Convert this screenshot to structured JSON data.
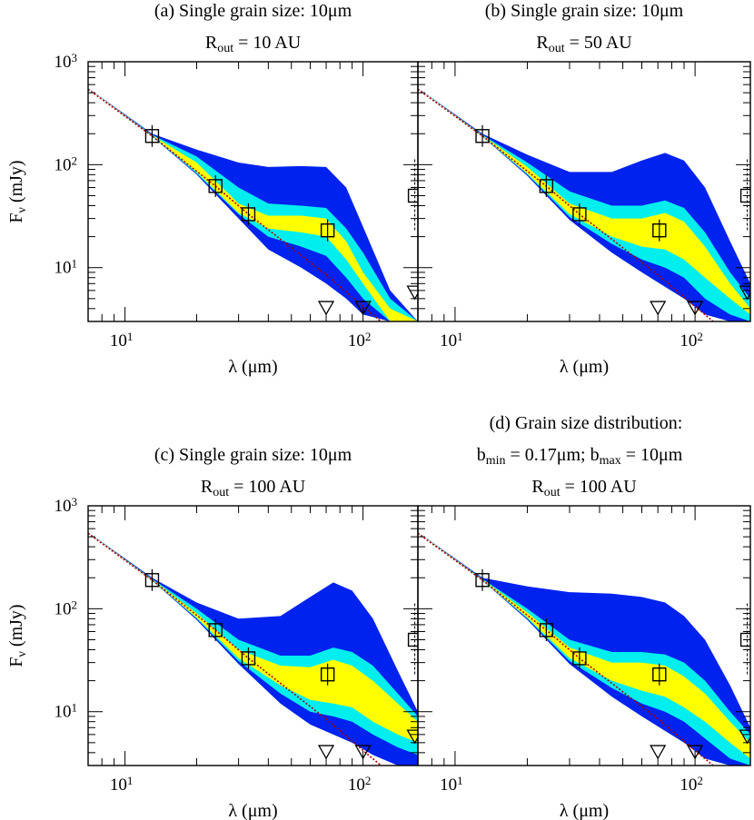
{
  "chart_data": [
    {
      "id": "a",
      "type": "line",
      "title_line1": "(a) Single grain size: 10μm",
      "title_line2": "R",
      "title_sub": "out",
      "title_rest": " = 10 AU",
      "xlabel": "λ (μm)",
      "ylabel": "F",
      "ylabel_sub": "ν",
      "ylabel_rest": " (mJy)",
      "xscale": "log",
      "yscale": "log",
      "xlim": [
        7,
        170
      ],
      "ylim": [
        3,
        1000
      ],
      "x_ticks": [
        "10",
        "10"
      ],
      "x_tick_exps": [
        "1",
        "2"
      ],
      "y_ticks": [
        "10",
        "10",
        "10"
      ],
      "y_tick_exps": [
        "1",
        "2",
        "3"
      ],
      "band_colors": [
        "#0022ee",
        "#00eeee",
        "#ffff00"
      ],
      "bands": {
        "x": [
          7,
          13,
          20,
          30,
          40,
          55,
          70,
          85,
          100,
          130,
          170
        ],
        "blue_upper": [
          555,
          200,
          140,
          105,
          95,
          97,
          95,
          60,
          25,
          6,
          3
        ],
        "cyan_upper": [
          555,
          195,
          120,
          60,
          42,
          40,
          38,
          24,
          14,
          5,
          3
        ],
        "yellow_upper": [
          555,
          193,
          105,
          42,
          32,
          32,
          30,
          18,
          9,
          4,
          3
        ],
        "yellow_lower": [
          555,
          190,
          85,
          34,
          24,
          22,
          20,
          12,
          7,
          3,
          3
        ],
        "cyan_lower": [
          555,
          189,
          82,
          33,
          20,
          16,
          13,
          8,
          5,
          3,
          3
        ],
        "blue_lower": [
          555,
          188,
          80,
          30,
          15,
          10,
          7,
          5,
          3.5,
          3,
          3
        ]
      },
      "photosphere": {
        "x": [
          7,
          13,
          24,
          33,
          70,
          100,
          170
        ],
        "y": [
          540,
          190,
          62,
          33,
          8.5,
          4.2,
          1.5
        ]
      },
      "data_points": [
        {
          "x": 13,
          "y": 190
        },
        {
          "x": 24,
          "y": 62
        },
        {
          "x": 33,
          "y": 33
        },
        {
          "x": 71,
          "y": 23
        }
      ],
      "upper_limits": [
        {
          "x": 70,
          "y": 3.9
        },
        {
          "x": 100,
          "y": 3.9
        },
        {
          "x": 165,
          "y": 5.5
        }
      ],
      "offscale_points": [
        {
          "x": 165,
          "y": 50
        }
      ]
    },
    {
      "id": "b",
      "type": "line",
      "title_line1": "(b) Single grain size: 10μm",
      "title_line2": "R",
      "title_sub": "out",
      "title_rest": " = 50 AU",
      "xlabel": "λ (μm)",
      "ylabel": "",
      "ylabel_sub": "",
      "ylabel_rest": "",
      "xscale": "log",
      "yscale": "log",
      "xlim": [
        7,
        170
      ],
      "ylim": [
        3,
        1000
      ],
      "x_ticks": [
        "10",
        "10"
      ],
      "x_tick_exps": [
        "1",
        "2"
      ],
      "y_ticks": [],
      "y_tick_exps": [],
      "band_colors": [
        "#0022ee",
        "#00eeee",
        "#ffff00"
      ],
      "bands": {
        "x": [
          7,
          13,
          20,
          30,
          45,
          60,
          75,
          90,
          110,
          140,
          170
        ],
        "blue_upper": [
          555,
          200,
          125,
          85,
          85,
          110,
          130,
          110,
          60,
          18,
          7
        ],
        "cyan_upper": [
          555,
          195,
          105,
          55,
          40,
          40,
          45,
          38,
          22,
          9,
          5
        ],
        "yellow_upper": [
          555,
          193,
          95,
          42,
          30,
          30,
          34,
          28,
          16,
          7,
          4
        ],
        "yellow_lower": [
          555,
          190,
          82,
          33,
          20,
          16,
          15,
          12,
          8,
          5,
          3.5
        ],
        "cyan_lower": [
          555,
          189,
          80,
          31,
          17,
          12,
          10,
          8,
          5,
          3.5,
          3
        ],
        "blue_lower": [
          555,
          188,
          78,
          29,
          14,
          9,
          6.5,
          5,
          3.5,
          3,
          3
        ]
      },
      "photosphere": {
        "x": [
          7,
          13,
          24,
          33,
          70,
          100,
          170
        ],
        "y": [
          540,
          190,
          62,
          33,
          8.5,
          4.2,
          1.5
        ]
      },
      "data_points": [
        {
          "x": 13,
          "y": 190
        },
        {
          "x": 24,
          "y": 62
        },
        {
          "x": 33,
          "y": 33
        },
        {
          "x": 71,
          "y": 23
        }
      ],
      "upper_limits": [
        {
          "x": 70,
          "y": 3.9
        },
        {
          "x": 100,
          "y": 3.9
        },
        {
          "x": 165,
          "y": 5.5
        }
      ],
      "offscale_points": [
        {
          "x": 165,
          "y": 50
        }
      ]
    },
    {
      "id": "c",
      "type": "line",
      "title_line1": "(c) Single grain size: 10μm",
      "title_line2": "R",
      "title_sub": "out",
      "title_rest": " = 100 AU",
      "xlabel": "λ (μm)",
      "ylabel": "F",
      "ylabel_sub": "ν",
      "ylabel_rest": " (mJy)",
      "xscale": "log",
      "yscale": "log",
      "xlim": [
        7,
        170
      ],
      "ylim": [
        3,
        1000
      ],
      "x_ticks": [
        "10",
        "10"
      ],
      "x_tick_exps": [
        "1",
        "2"
      ],
      "y_ticks": [
        "10",
        "10",
        "10"
      ],
      "y_tick_exps": [
        "1",
        "2",
        "3"
      ],
      "band_colors": [
        "#0022ee",
        "#00eeee",
        "#ffff00"
      ],
      "bands": {
        "x": [
          7,
          13,
          20,
          30,
          45,
          60,
          75,
          90,
          110,
          140,
          170
        ],
        "blue_upper": [
          555,
          200,
          115,
          80,
          85,
          130,
          180,
          150,
          80,
          25,
          10
        ],
        "cyan_upper": [
          555,
          195,
          100,
          50,
          35,
          35,
          42,
          38,
          28,
          15,
          9
        ],
        "yellow_upper": [
          555,
          193,
          90,
          40,
          28,
          27,
          32,
          28,
          20,
          12,
          8
        ],
        "yellow_lower": [
          555,
          190,
          82,
          33,
          18,
          13,
          12,
          11,
          8,
          6,
          5
        ],
        "cyan_lower": [
          555,
          189,
          80,
          31,
          15,
          10,
          9,
          8,
          6,
          4.5,
          3.8
        ],
        "blue_lower": [
          555,
          188,
          78,
          29,
          12,
          7.5,
          6,
          5,
          3.8,
          3,
          3
        ]
      },
      "photosphere": {
        "x": [
          7,
          13,
          24,
          33,
          70,
          100,
          170
        ],
        "y": [
          540,
          190,
          62,
          33,
          8.5,
          4.2,
          1.5
        ]
      },
      "data_points": [
        {
          "x": 13,
          "y": 190
        },
        {
          "x": 24,
          "y": 62
        },
        {
          "x": 33,
          "y": 33
        },
        {
          "x": 71,
          "y": 23
        }
      ],
      "upper_limits": [
        {
          "x": 70,
          "y": 3.9
        },
        {
          "x": 100,
          "y": 3.9
        },
        {
          "x": 165,
          "y": 5.5
        }
      ],
      "offscale_points": [
        {
          "x": 165,
          "y": 50
        }
      ]
    },
    {
      "id": "d",
      "type": "line",
      "title_line0": "(d) Grain size distribution:",
      "title_line1_parts": [
        "b",
        "min",
        " = 0.17μm; b",
        "max",
        " = 10μm"
      ],
      "title_line2": "R",
      "title_sub": "out",
      "title_rest": " = 100 AU",
      "xlabel": "λ (μm)",
      "ylabel": "",
      "ylabel_sub": "",
      "ylabel_rest": "",
      "xscale": "log",
      "yscale": "log",
      "xlim": [
        7,
        170
      ],
      "ylim": [
        3,
        1000
      ],
      "x_ticks": [
        "10",
        "10"
      ],
      "x_tick_exps": [
        "1",
        "2"
      ],
      "y_ticks": [],
      "y_tick_exps": [],
      "band_colors": [
        "#0022ee",
        "#00eeee",
        "#ffff00"
      ],
      "bands": {
        "x": [
          7,
          13,
          20,
          30,
          45,
          60,
          75,
          90,
          110,
          140,
          170
        ],
        "blue_upper": [
          555,
          200,
          165,
          145,
          140,
          130,
          115,
          85,
          50,
          18,
          7
        ],
        "cyan_upper": [
          555,
          195,
          100,
          50,
          38,
          38,
          36,
          30,
          20,
          10,
          6
        ],
        "yellow_upper": [
          555,
          193,
          92,
          42,
          30,
          30,
          28,
          22,
          15,
          8,
          5
        ],
        "yellow_lower": [
          555,
          190,
          82,
          33,
          20,
          16,
          14,
          11,
          8,
          5,
          3.5
        ],
        "cyan_lower": [
          555,
          189,
          80,
          31,
          17,
          12,
          10,
          8,
          5.5,
          3.5,
          3
        ],
        "blue_lower": [
          555,
          188,
          78,
          29,
          14,
          9,
          6.5,
          5,
          3.5,
          3,
          3
        ]
      },
      "photosphere": {
        "x": [
          7,
          13,
          24,
          33,
          70,
          100,
          170
        ],
        "y": [
          540,
          190,
          62,
          33,
          8.5,
          4.2,
          1.5
        ]
      },
      "data_points": [
        {
          "x": 13,
          "y": 190
        },
        {
          "x": 24,
          "y": 62
        },
        {
          "x": 33,
          "y": 33
        },
        {
          "x": 71,
          "y": 23
        }
      ],
      "upper_limits": [
        {
          "x": 70,
          "y": 3.9
        },
        {
          "x": 100,
          "y": 3.9
        },
        {
          "x": 165,
          "y": 5.5
        }
      ],
      "offscale_points": [
        {
          "x": 165,
          "y": 50
        }
      ]
    }
  ]
}
